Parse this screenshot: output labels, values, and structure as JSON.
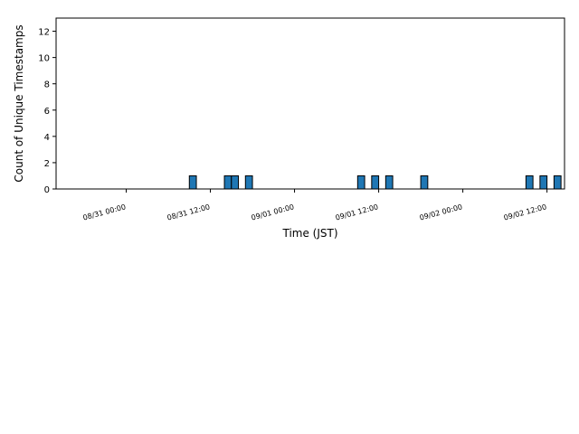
{
  "chart_data": {
    "type": "bar",
    "xlabel": "Time (JST)",
    "ylabel": "Count of Unique Timestamps",
    "x_ticks": [
      "08/31 00:00",
      "08/31 12:00",
      "09/01 00:00",
      "09/01 12:00",
      "09/02 00:00",
      "09/02 12:00"
    ],
    "x_tick_hours": [
      0,
      12,
      24,
      36,
      48,
      60
    ],
    "xlim_hours": [
      -10,
      62.5
    ],
    "y_ticks": [
      0,
      2,
      4,
      6,
      8,
      10,
      12
    ],
    "ylim": [
      0,
      13
    ],
    "grid": false,
    "bin_width_hours": 1,
    "bars": [
      {
        "x": "08/31 09:00",
        "hour": 9,
        "value": 1
      },
      {
        "x": "08/31 14:00",
        "hour": 14,
        "value": 1
      },
      {
        "x": "08/31 15:00",
        "hour": 15,
        "value": 1
      },
      {
        "x": "08/31 17:00",
        "hour": 17,
        "value": 1
      },
      {
        "x": "09/01 09:00",
        "hour": 33,
        "value": 1
      },
      {
        "x": "09/01 11:00",
        "hour": 35,
        "value": 1
      },
      {
        "x": "09/01 13:00",
        "hour": 37,
        "value": 1
      },
      {
        "x": "09/01 18:00",
        "hour": 42,
        "value": 1
      },
      {
        "x": "09/02 09:00",
        "hour": 57,
        "value": 1
      },
      {
        "x": "09/02 11:00",
        "hour": 59,
        "value": 1
      },
      {
        "x": "09/02 13:00",
        "hour": 61,
        "value": 1
      }
    ],
    "bar_color": "#1f77b4",
    "bar_edge_color": "#000000"
  }
}
